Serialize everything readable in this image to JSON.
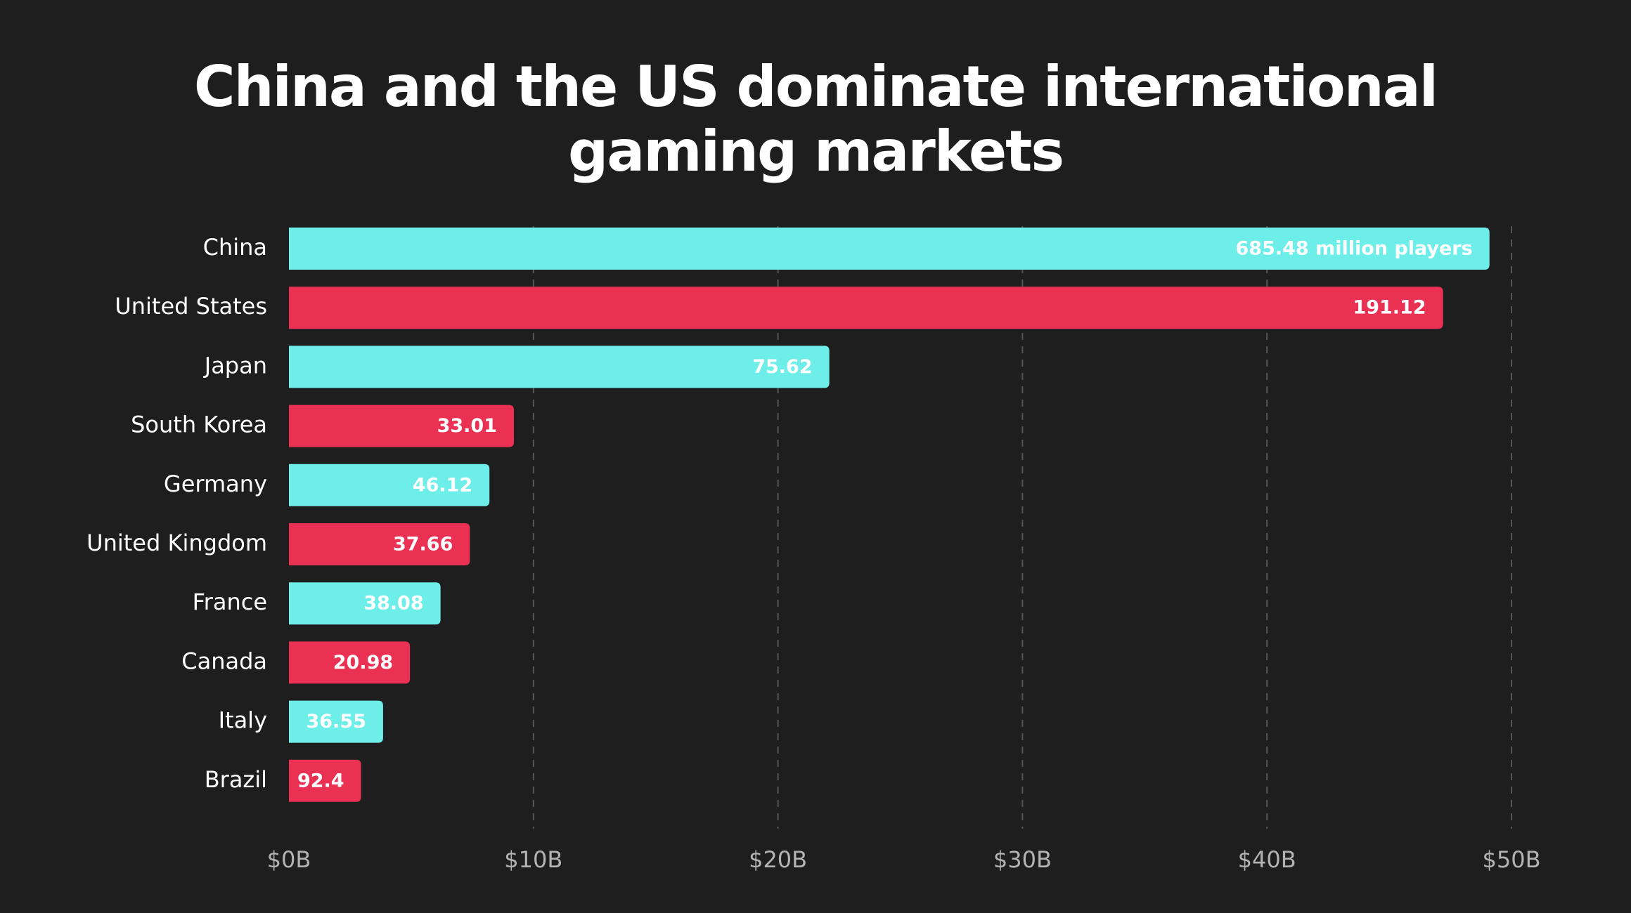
{
  "chart_data": {
    "type": "bar",
    "orientation": "horizontal",
    "title": "China and the US dominate international gaming markets",
    "title_lines": [
      "China and the US dominate international",
      "gaming markets"
    ],
    "xlabel": "",
    "ylabel": "",
    "xlim": [
      0,
      50
    ],
    "x_unit": "$B",
    "x_ticks": [
      0,
      10,
      20,
      30,
      40,
      50
    ],
    "x_tick_labels": [
      "$0B",
      "$10B",
      "$20B",
      "$30B",
      "$40B",
      "$50B"
    ],
    "grid": true,
    "categories": [
      "China",
      "United States",
      "Japan",
      "South Korea",
      "Germany",
      "United Kingdom",
      "France",
      "Canada",
      "Italy",
      "Brazil"
    ],
    "values": [
      49.1,
      47.2,
      22.1,
      9.2,
      8.2,
      7.4,
      6.2,
      4.95,
      3.85,
      2.95
    ],
    "data_labels": [
      "685.48 million players",
      "191.12",
      "75.62",
      "33.01",
      "46.12",
      "37.66",
      "38.08",
      "20.98",
      "36.55",
      "92.4"
    ],
    "bar_colors": [
      "#6eeee9",
      "#ea3154",
      "#6eeee9",
      "#ea3154",
      "#6eeee9",
      "#ea3154",
      "#6eeee9",
      "#ea3154",
      "#6eeee9",
      "#ea3154"
    ]
  },
  "colors": {
    "background": "#1e1e1e",
    "teal": "#6eeee9",
    "red": "#ea3154"
  }
}
